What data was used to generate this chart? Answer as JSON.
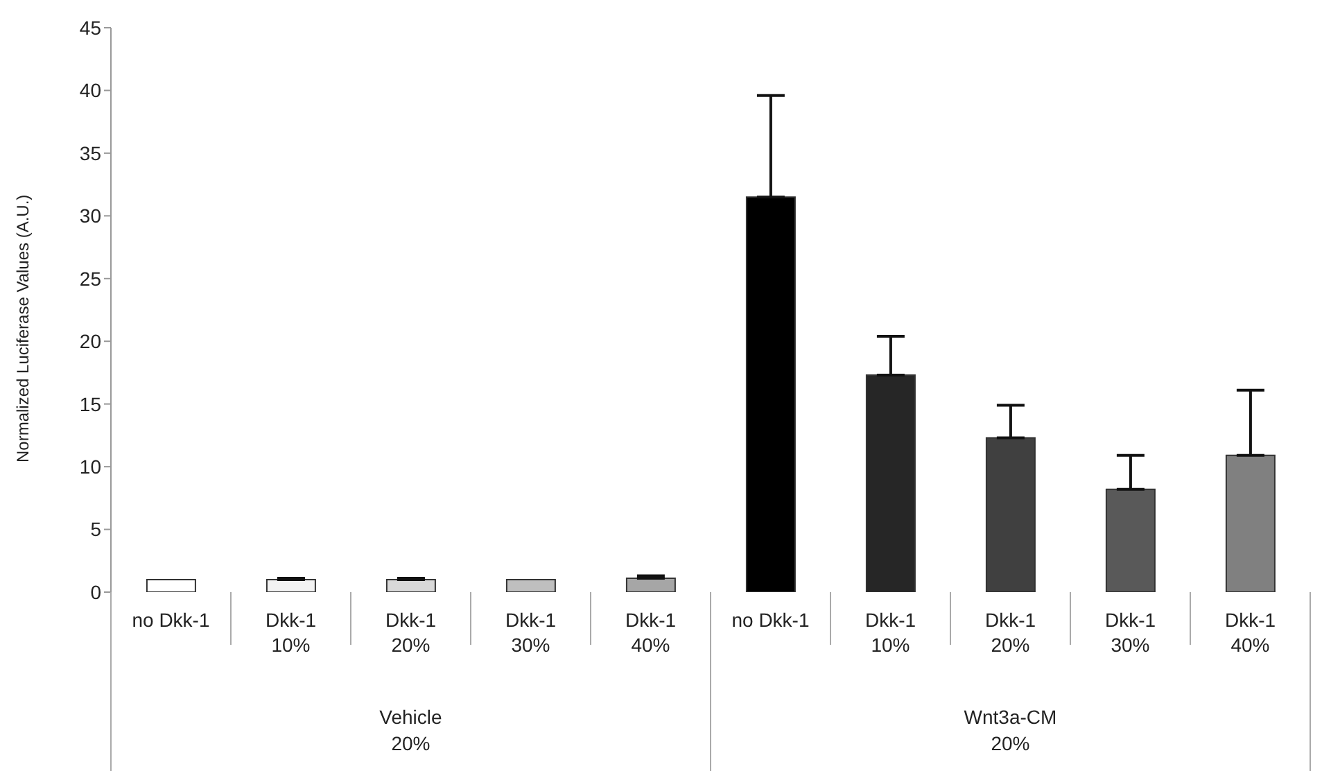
{
  "chart_data": {
    "type": "bar",
    "ylabel": "Normalized Luciferase Values (A.U.)",
    "categories": [
      "no Dkk-1",
      "Dkk-1\n10%",
      "Dkk-1\n20%",
      "Dkk-1\n30%",
      "Dkk-1\n40%",
      "no Dkk-1",
      "Dkk-1\n10%",
      "Dkk-1\n20%",
      "Dkk-1\n30%",
      "Dkk-1\n40%"
    ],
    "values": [
      1,
      1,
      1,
      1,
      1.1,
      31.5,
      17.3,
      12.3,
      8.2,
      10.9
    ],
    "colors": [
      "#ffffff",
      "#f2f2f2",
      "#d9d9d9",
      "#bfbfbf",
      "#a6a6a6",
      "#000000",
      "#262626",
      "#404040",
      "#595959",
      "#808080"
    ],
    "errors": [
      null,
      [
        1,
        1.1
      ],
      [
        1,
        1.1
      ],
      null,
      [
        1.1,
        1.3
      ],
      [
        31.5,
        39.6
      ],
      [
        17.3,
        20.4
      ],
      [
        12.3,
        14.9
      ],
      [
        8.2,
        10.9
      ],
      [
        10.9,
        16.1
      ]
    ],
    "ylim": [
      0,
      45
    ],
    "yticks": [
      0,
      5,
      10,
      15,
      20,
      25,
      30,
      35,
      40,
      45
    ],
    "annotations": [
      "Vehicle\n20%",
      "Wnt3a-CM\n20%"
    ]
  }
}
